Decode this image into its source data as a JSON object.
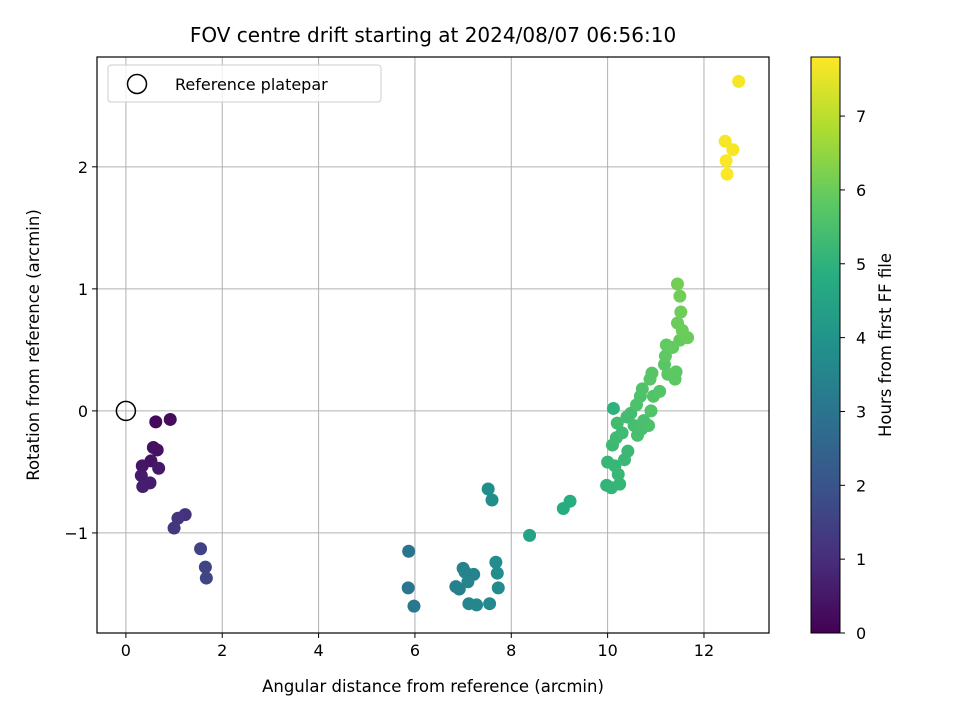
{
  "chart_data": {
    "type": "scatter",
    "title": "FOV centre drift starting at 2024/08/07 06:56:10",
    "xlabel": "Angular distance from reference (arcmin)",
    "ylabel": "Rotation from reference (arcmin)",
    "xlim": [
      -0.6,
      13.35
    ],
    "ylim": [
      -1.82,
      2.9
    ],
    "xticks": [
      0,
      2,
      4,
      6,
      8,
      10,
      12
    ],
    "yticks": [
      -1,
      0,
      1,
      2
    ],
    "xtick_labels": [
      "0",
      "2",
      "4",
      "6",
      "8",
      "10",
      "12"
    ],
    "ytick_labels": [
      "−1",
      "0",
      "1",
      "2"
    ],
    "grid": true,
    "colormap": "viridis",
    "colorbar": {
      "label": "Hours from first FF file",
      "range": [
        0,
        7.8
      ],
      "ticks": [
        0,
        1,
        2,
        3,
        4,
        5,
        6,
        7
      ],
      "tick_labels": [
        "0",
        "1",
        "2",
        "3",
        "4",
        "5",
        "6",
        "7"
      ]
    },
    "legend": {
      "placement": "top-left",
      "entries": [
        {
          "label": "Reference platepar",
          "marker": "open-circle"
        }
      ]
    },
    "reference_point": {
      "x": 0,
      "y": 0
    },
    "points": [
      {
        "x": 0.62,
        "y": -0.09,
        "c": 0.2
      },
      {
        "x": 0.92,
        "y": -0.07,
        "c": 0.25
      },
      {
        "x": 0.57,
        "y": -0.3,
        "c": 0.3
      },
      {
        "x": 0.65,
        "y": -0.32,
        "c": 0.35
      },
      {
        "x": 0.52,
        "y": -0.41,
        "c": 0.4
      },
      {
        "x": 0.34,
        "y": -0.45,
        "c": 0.45
      },
      {
        "x": 0.68,
        "y": -0.47,
        "c": 0.5
      },
      {
        "x": 0.32,
        "y": -0.53,
        "c": 0.55
      },
      {
        "x": 0.5,
        "y": -0.59,
        "c": 0.6
      },
      {
        "x": 0.35,
        "y": -0.62,
        "c": 0.65
      },
      {
        "x": 1.23,
        "y": -0.85,
        "c": 1.1
      },
      {
        "x": 1.08,
        "y": -0.88,
        "c": 1.15
      },
      {
        "x": 1.0,
        "y": -0.96,
        "c": 1.2
      },
      {
        "x": 1.55,
        "y": -1.13,
        "c": 1.5
      },
      {
        "x": 1.65,
        "y": -1.28,
        "c": 1.55
      },
      {
        "x": 1.67,
        "y": -1.37,
        "c": 1.6
      },
      {
        "x": 5.87,
        "y": -1.15,
        "c": 3.0
      },
      {
        "x": 5.86,
        "y": -1.45,
        "c": 3.05
      },
      {
        "x": 5.98,
        "y": -1.6,
        "c": 3.1
      },
      {
        "x": 6.85,
        "y": -1.44,
        "c": 3.35
      },
      {
        "x": 6.92,
        "y": -1.46,
        "c": 3.38
      },
      {
        "x": 7.0,
        "y": -1.29,
        "c": 3.4
      },
      {
        "x": 7.04,
        "y": -1.32,
        "c": 3.42
      },
      {
        "x": 7.13,
        "y": -1.35,
        "c": 3.45
      },
      {
        "x": 7.22,
        "y": -1.34,
        "c": 3.47
      },
      {
        "x": 7.1,
        "y": -1.4,
        "c": 3.5
      },
      {
        "x": 7.12,
        "y": -1.58,
        "c": 3.55
      },
      {
        "x": 7.28,
        "y": -1.59,
        "c": 3.6
      },
      {
        "x": 7.55,
        "y": -1.58,
        "c": 3.65
      },
      {
        "x": 7.73,
        "y": -1.45,
        "c": 3.7
      },
      {
        "x": 7.68,
        "y": -1.24,
        "c": 3.75
      },
      {
        "x": 7.71,
        "y": -1.33,
        "c": 3.77
      },
      {
        "x": 7.52,
        "y": -0.64,
        "c": 3.8
      },
      {
        "x": 7.6,
        "y": -0.73,
        "c": 3.82
      },
      {
        "x": 8.38,
        "y": -1.02,
        "c": 4.5
      },
      {
        "x": 9.08,
        "y": -0.8,
        "c": 4.8
      },
      {
        "x": 9.22,
        "y": -0.74,
        "c": 4.85
      },
      {
        "x": 10.12,
        "y": 0.02,
        "c": 5.0
      },
      {
        "x": 9.98,
        "y": -0.61,
        "c": 5.05
      },
      {
        "x": 10.08,
        "y": -0.63,
        "c": 5.1
      },
      {
        "x": 10.25,
        "y": -0.6,
        "c": 5.12
      },
      {
        "x": 10.0,
        "y": -0.42,
        "c": 5.15
      },
      {
        "x": 10.15,
        "y": -0.45,
        "c": 5.17
      },
      {
        "x": 10.22,
        "y": -0.52,
        "c": 5.2
      },
      {
        "x": 10.35,
        "y": -0.4,
        "c": 5.22
      },
      {
        "x": 10.42,
        "y": -0.33,
        "c": 5.25
      },
      {
        "x": 10.1,
        "y": -0.28,
        "c": 5.27
      },
      {
        "x": 10.18,
        "y": -0.22,
        "c": 5.3
      },
      {
        "x": 10.3,
        "y": -0.18,
        "c": 5.32
      },
      {
        "x": 10.2,
        "y": -0.1,
        "c": 5.35
      },
      {
        "x": 10.4,
        "y": -0.05,
        "c": 5.37
      },
      {
        "x": 10.48,
        "y": -0.02,
        "c": 5.4
      },
      {
        "x": 10.55,
        "y": -0.12,
        "c": 5.42
      },
      {
        "x": 10.62,
        "y": -0.2,
        "c": 5.45
      },
      {
        "x": 10.7,
        "y": -0.15,
        "c": 5.47
      },
      {
        "x": 10.75,
        "y": -0.08,
        "c": 5.5
      },
      {
        "x": 10.85,
        "y": -0.12,
        "c": 5.52
      },
      {
        "x": 10.6,
        "y": 0.05,
        "c": 5.55
      },
      {
        "x": 10.68,
        "y": 0.12,
        "c": 5.57
      },
      {
        "x": 10.72,
        "y": 0.18,
        "c": 5.6
      },
      {
        "x": 10.9,
        "y": 0.0,
        "c": 5.62
      },
      {
        "x": 10.95,
        "y": 0.12,
        "c": 5.65
      },
      {
        "x": 11.08,
        "y": 0.16,
        "c": 5.67
      },
      {
        "x": 10.88,
        "y": 0.26,
        "c": 5.7
      },
      {
        "x": 10.92,
        "y": 0.31,
        "c": 5.72
      },
      {
        "x": 11.18,
        "y": 0.38,
        "c": 5.75
      },
      {
        "x": 11.25,
        "y": 0.3,
        "c": 5.77
      },
      {
        "x": 11.4,
        "y": 0.26,
        "c": 5.8
      },
      {
        "x": 11.42,
        "y": 0.32,
        "c": 5.82
      },
      {
        "x": 11.2,
        "y": 0.45,
        "c": 5.85
      },
      {
        "x": 11.22,
        "y": 0.54,
        "c": 5.87
      },
      {
        "x": 11.35,
        "y": 0.52,
        "c": 5.9
      },
      {
        "x": 11.5,
        "y": 0.58,
        "c": 5.92
      },
      {
        "x": 11.58,
        "y": 0.62,
        "c": 5.95
      },
      {
        "x": 11.66,
        "y": 0.6,
        "c": 5.97
      },
      {
        "x": 11.45,
        "y": 0.72,
        "c": 6.0
      },
      {
        "x": 11.55,
        "y": 0.66,
        "c": 6.02
      },
      {
        "x": 11.52,
        "y": 0.81,
        "c": 6.05
      },
      {
        "x": 11.5,
        "y": 0.94,
        "c": 6.07
      },
      {
        "x": 11.45,
        "y": 1.04,
        "c": 6.1
      },
      {
        "x": 12.72,
        "y": 2.7,
        "c": 7.7
      },
      {
        "x": 12.44,
        "y": 2.21,
        "c": 7.72
      },
      {
        "x": 12.6,
        "y": 2.14,
        "c": 7.74
      },
      {
        "x": 12.46,
        "y": 2.05,
        "c": 7.76
      },
      {
        "x": 12.48,
        "y": 1.94,
        "c": 7.78
      }
    ]
  }
}
